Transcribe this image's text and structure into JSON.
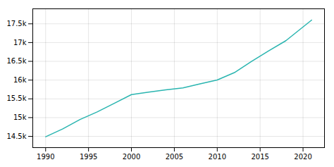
{
  "chart_data": {
    "type": "line",
    "x": [
      1990,
      1992,
      1994,
      1996,
      1998,
      2000,
      2002,
      2004,
      2006,
      2008,
      2010,
      2012,
      2014,
      2016,
      2018,
      2019,
      2021
    ],
    "values": [
      14490,
      14700,
      14950,
      15150,
      15380,
      15613,
      15680,
      15740,
      15790,
      15900,
      16002,
      16200,
      16500,
      16780,
      17050,
      17234,
      17600
    ],
    "color": "#2ab5b0",
    "xlim": [
      1988.5,
      2022.5
    ],
    "xticks": [
      1990,
      1995,
      2000,
      2005,
      2010,
      2015,
      2020
    ],
    "ylim": [
      14200,
      17900
    ],
    "yticks": [
      {
        "value": 14500,
        "label": "14.5k"
      },
      {
        "value": 15000,
        "label": "15k"
      },
      {
        "value": 15500,
        "label": "15.5k"
      },
      {
        "value": 16000,
        "label": "16k"
      },
      {
        "value": 16500,
        "label": "16.5k"
      },
      {
        "value": 17000,
        "label": "17k"
      },
      {
        "value": 17500,
        "label": "17.5k"
      }
    ],
    "grid": true
  }
}
